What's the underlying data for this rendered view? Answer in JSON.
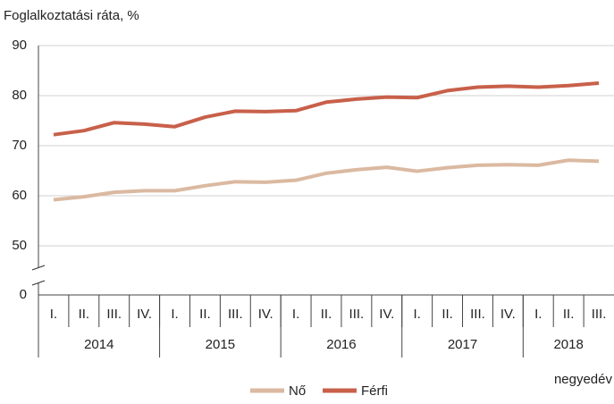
{
  "chart_data": {
    "type": "line",
    "y_axis_label": "Foglalkoztatási ráta, %",
    "x_axis_label": "negyedév",
    "categories": [
      "I.",
      "II.",
      "III.",
      "IV.",
      "I.",
      "II.",
      "III.",
      "IV.",
      "I.",
      "II.",
      "III.",
      "IV.",
      "I.",
      "II.",
      "III.",
      "IV.",
      "I.",
      "II.",
      "III."
    ],
    "category_groups": [
      {
        "label": "2014",
        "size": 4
      },
      {
        "label": "2015",
        "size": 4
      },
      {
        "label": "2016",
        "size": 4
      },
      {
        "label": "2017",
        "size": 4
      },
      {
        "label": "2018",
        "size": 3
      }
    ],
    "series": [
      {
        "name": "Nő",
        "color": "#dbb9a1",
        "values": [
          59.2,
          59.8,
          60.7,
          61.0,
          61.0,
          62.0,
          62.8,
          62.7,
          63.1,
          64.5,
          65.2,
          65.7,
          64.9,
          65.6,
          66.1,
          66.2,
          66.1,
          67.1,
          66.9
        ]
      },
      {
        "name": "Férfi",
        "color": "#c8604a",
        "values": [
          72.2,
          73.0,
          74.6,
          74.3,
          73.8,
          75.7,
          76.9,
          76.8,
          77.0,
          78.7,
          79.3,
          79.7,
          79.6,
          81.0,
          81.7,
          81.9,
          81.7,
          82.0,
          82.5
        ]
      }
    ],
    "ylim": [
      0,
      90
    ],
    "axis_break": [
      0,
      50
    ],
    "yticks": [
      0,
      50,
      60,
      70,
      80,
      90
    ],
    "grid": true,
    "legend": "bottom"
  }
}
